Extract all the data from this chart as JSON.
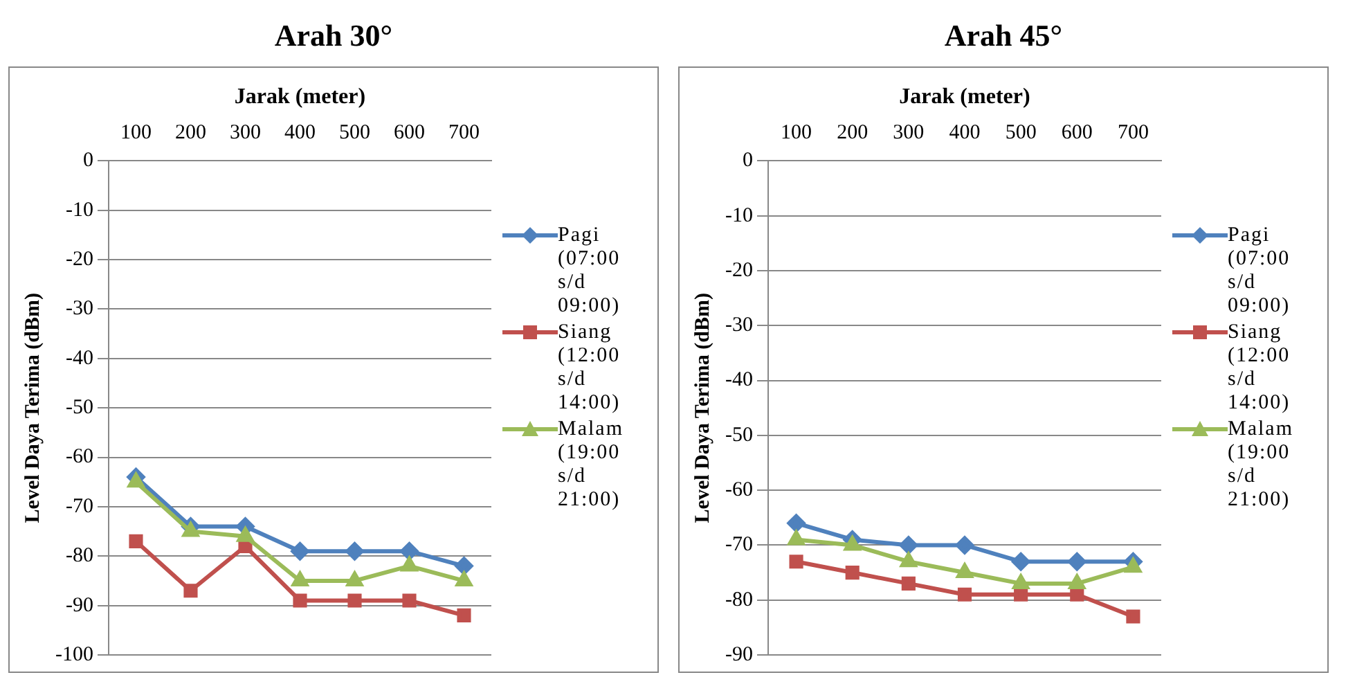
{
  "chart_data": [
    {
      "type": "line",
      "title": "Arah 30°",
      "xlabel": "Jarak (meter)",
      "ylabel": "Level Daya Terima (dBm)",
      "categories": [
        "100",
        "200",
        "300",
        "400",
        "500",
        "600",
        "700"
      ],
      "ylim": [
        -100,
        0
      ],
      "yticks": [
        -100,
        -90,
        -80,
        -70,
        -60,
        -50,
        -40,
        -30,
        -20,
        -10,
        0
      ],
      "grid": "y",
      "legend": "right",
      "series": [
        {
          "name": "Pagi (07:00 s/d 09:00)",
          "color": "#4f81bd",
          "marker": "diamond",
          "values": [
            -64,
            -74,
            -74,
            -79,
            -79,
            -79,
            -82
          ]
        },
        {
          "name": "Siang (12:00 s/d 14:00)",
          "color": "#c0504d",
          "marker": "square",
          "values": [
            -77,
            -87,
            -78,
            -89,
            -89,
            -89,
            -92
          ]
        },
        {
          "name": "Malam (19:00 s/d 21:00)",
          "color": "#9bbb59",
          "marker": "triangle",
          "values": [
            -65,
            -75,
            -76,
            -85,
            -85,
            -82,
            -85
          ]
        }
      ]
    },
    {
      "type": "line",
      "title": "Arah 45°",
      "xlabel": "Jarak (meter)",
      "ylabel": "Level Daya Terima (dBm)",
      "categories": [
        "100",
        "200",
        "300",
        "400",
        "500",
        "600",
        "700"
      ],
      "ylim": [
        -90,
        0
      ],
      "yticks": [
        -90,
        -80,
        -70,
        -60,
        -50,
        -40,
        -30,
        -20,
        -10,
        0
      ],
      "grid": "y",
      "legend": "right",
      "series": [
        {
          "name": "Pagi (07:00 s/d 09:00)",
          "color": "#4f81bd",
          "marker": "diamond",
          "values": [
            -66,
            -69,
            -70,
            -70,
            -73,
            -73,
            -73
          ]
        },
        {
          "name": "Siang (12:00 s/d 14:00)",
          "color": "#c0504d",
          "marker": "square",
          "values": [
            -73,
            -75,
            -77,
            -79,
            -79,
            -79,
            -83
          ]
        },
        {
          "name": "Malam (19:00 s/d 21:00)",
          "color": "#9bbb59",
          "marker": "triangle",
          "values": [
            -69,
            -70,
            -73,
            -75,
            -77,
            -77,
            -74
          ]
        }
      ]
    }
  ]
}
